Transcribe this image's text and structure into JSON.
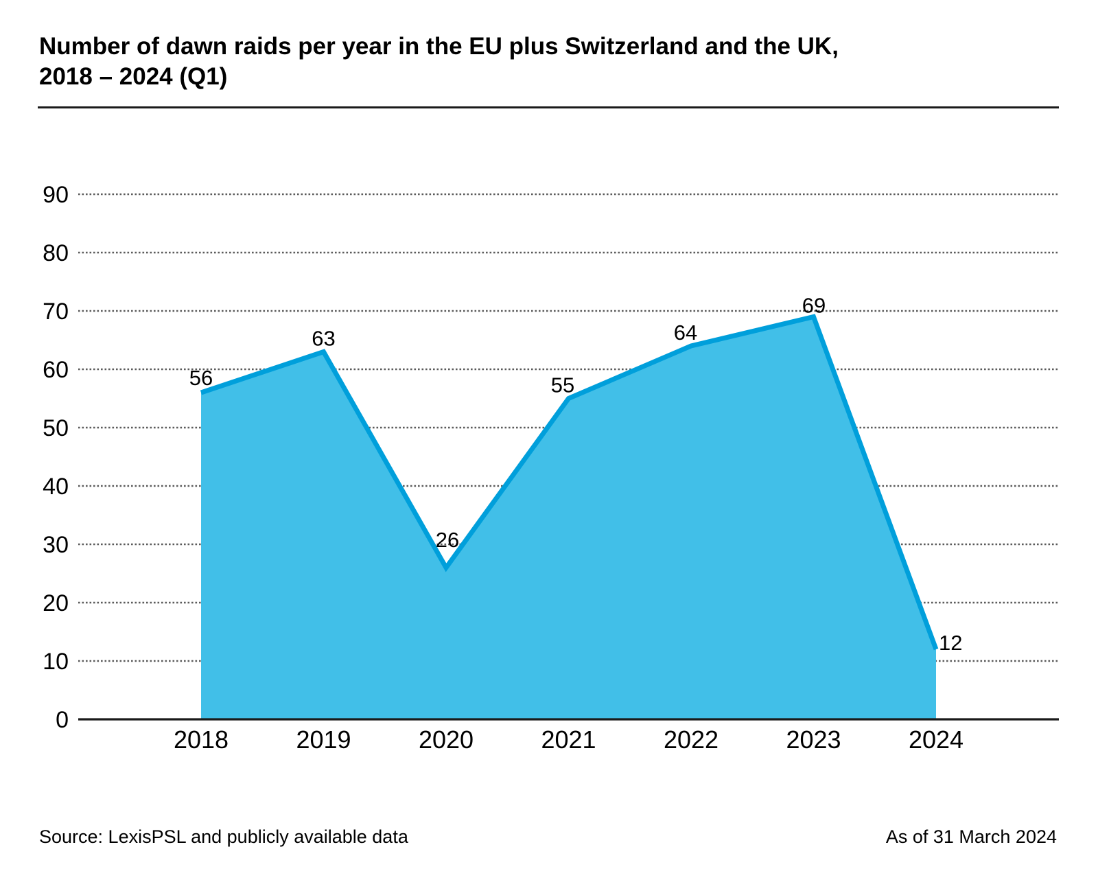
{
  "title": {
    "line1": "Number of dawn raids per year in the EU plus Switzerland and the UK,",
    "line2": "2018 – 2024 (Q1)"
  },
  "footer": {
    "source": "Source: LexisPSL and publicly available data",
    "as_of": "As of 31 March 2024"
  },
  "chart_data": {
    "type": "area",
    "title": "Number of dawn raids per year in the EU plus Switzerland and the UK, 2018 – 2024 (Q1)",
    "categories": [
      "2018",
      "2019",
      "2020",
      "2021",
      "2022",
      "2023",
      "2024"
    ],
    "values": [
      56,
      63,
      26,
      55,
      64,
      69,
      12
    ],
    "data_labels": [
      "56",
      "63",
      "26",
      "55",
      "64",
      "69",
      "12"
    ],
    "xlabel": "",
    "ylabel": "",
    "ylim": [
      0,
      90
    ],
    "yticks": [
      0,
      10,
      20,
      30,
      40,
      50,
      60,
      70,
      80,
      90
    ],
    "grid": "horizontal-dotted",
    "legend": "none",
    "colors": {
      "area_fill": "#41BFE8",
      "line_stroke": "#009FDB",
      "gridline": "#5a5a5a",
      "axis": "#1a1a1a",
      "text": "#000000"
    }
  }
}
